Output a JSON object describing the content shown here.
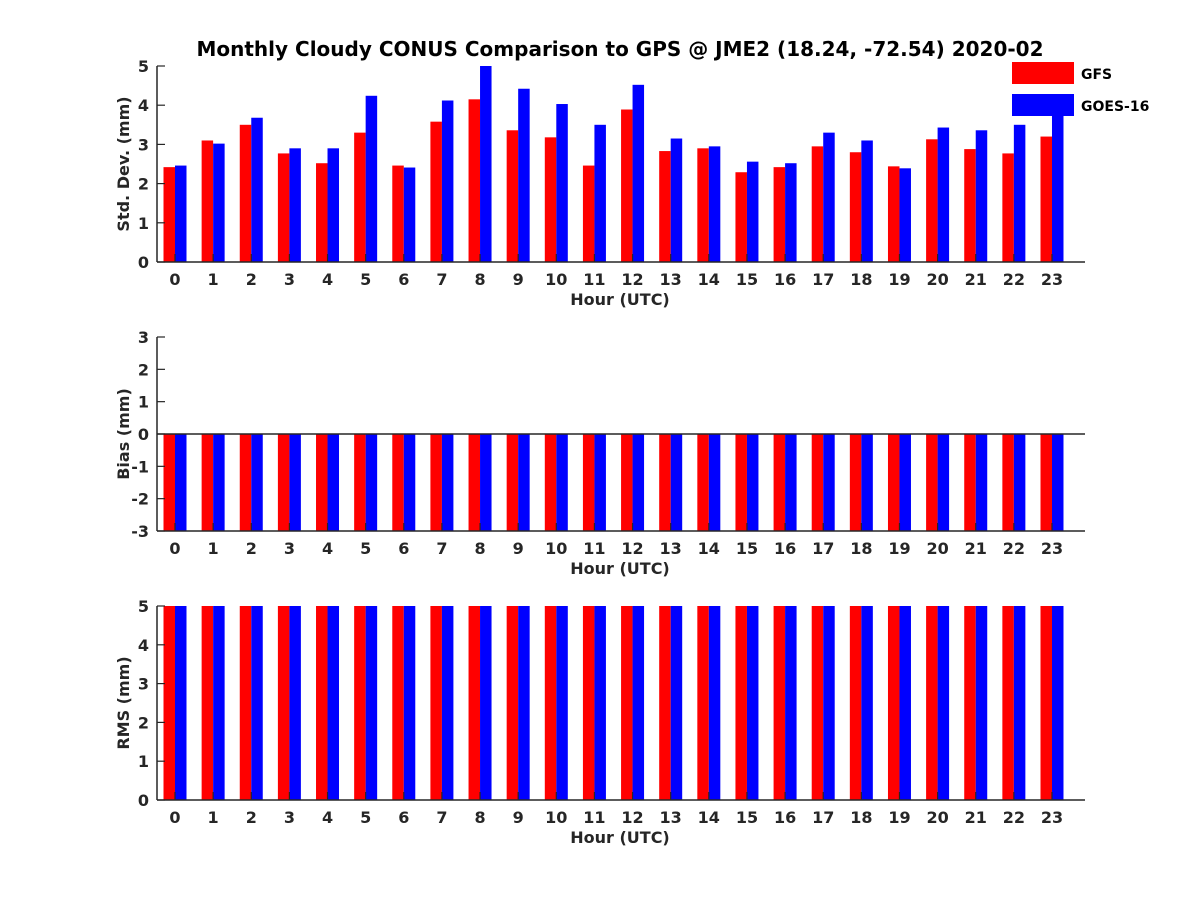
{
  "figure_title": "Monthly Cloudy CONUS Comparison to GPS @ JME2 (18.24, -72.54) 2020-02",
  "legend": {
    "location": "top-right",
    "items": [
      {
        "name": "GFS",
        "color": "#ff0000"
      },
      {
        "name": "GOES-16",
        "color": "#0000ff"
      }
    ]
  },
  "chart_data": [
    {
      "type": "bar",
      "xlabel": "Hour (UTC)",
      "ylabel": "Std. Dev. (mm)",
      "ylim": [
        0,
        5
      ],
      "yticks": [
        0,
        1,
        2,
        3,
        4,
        5
      ],
      "categories": [
        "0",
        "1",
        "2",
        "3",
        "4",
        "5",
        "6",
        "7",
        "8",
        "9",
        "10",
        "11",
        "12",
        "13",
        "14",
        "15",
        "16",
        "17",
        "18",
        "19",
        "20",
        "21",
        "22",
        "23"
      ],
      "series": [
        {
          "name": "GFS",
          "color": "#ff0000",
          "values": [
            2.42,
            3.1,
            3.5,
            2.77,
            2.52,
            3.3,
            2.46,
            3.58,
            4.15,
            3.36,
            3.18,
            2.46,
            3.89,
            2.83,
            2.9,
            2.29,
            2.42,
            2.95,
            2.8,
            2.44,
            3.13,
            2.88,
            2.77,
            3.2
          ]
        },
        {
          "name": "GOES-16",
          "color": "#0000ff",
          "values": [
            2.46,
            3.02,
            3.68,
            2.9,
            2.9,
            4.24,
            2.41,
            4.12,
            5.0,
            4.42,
            4.03,
            3.5,
            4.52,
            3.15,
            2.95,
            2.56,
            2.52,
            3.3,
            3.1,
            2.39,
            3.43,
            3.36,
            3.5,
            3.8
          ]
        }
      ]
    },
    {
      "type": "bar",
      "xlabel": "Hour (UTC)",
      "ylabel": "Bias (mm)",
      "ylim": [
        -3,
        3
      ],
      "yticks": [
        -3,
        -2,
        -1,
        0,
        1,
        2,
        3
      ],
      "categories": [
        "0",
        "1",
        "2",
        "3",
        "4",
        "5",
        "6",
        "7",
        "8",
        "9",
        "10",
        "11",
        "12",
        "13",
        "14",
        "15",
        "16",
        "17",
        "18",
        "19",
        "20",
        "21",
        "22",
        "23"
      ],
      "series": [
        {
          "name": "GFS",
          "color": "#ff0000",
          "values": [
            -3,
            -3,
            -3,
            -3,
            -3,
            -3,
            -3,
            -3,
            -3,
            -3,
            -3,
            -3,
            -3,
            -3,
            -3,
            -3,
            -3,
            -3,
            -3,
            -3,
            -3,
            -3,
            -3,
            -3
          ]
        },
        {
          "name": "GOES-16",
          "color": "#0000ff",
          "values": [
            -3,
            -3,
            -3,
            -3,
            -3,
            -3,
            -3,
            -3,
            -3,
            -3,
            -3,
            -3,
            -3,
            -3,
            -3,
            -3,
            -3,
            -3,
            -3,
            -3,
            -3,
            -3,
            -3,
            -3
          ]
        }
      ]
    },
    {
      "type": "bar",
      "xlabel": "Hour (UTC)",
      "ylabel": "RMS (mm)",
      "ylim": [
        0,
        5
      ],
      "yticks": [
        0,
        1,
        2,
        3,
        4,
        5
      ],
      "categories": [
        "0",
        "1",
        "2",
        "3",
        "4",
        "5",
        "6",
        "7",
        "8",
        "9",
        "10",
        "11",
        "12",
        "13",
        "14",
        "15",
        "16",
        "17",
        "18",
        "19",
        "20",
        "21",
        "22",
        "23"
      ],
      "series": [
        {
          "name": "GFS",
          "color": "#ff0000",
          "values": [
            5,
            5,
            5,
            5,
            5,
            5,
            5,
            5,
            5,
            5,
            5,
            5,
            5,
            5,
            5,
            5,
            5,
            5,
            5,
            5,
            5,
            5,
            5,
            5
          ]
        },
        {
          "name": "GOES-16",
          "color": "#0000ff",
          "values": [
            5,
            5,
            5,
            5,
            5,
            5,
            5,
            5,
            5,
            5,
            5,
            5,
            5,
            5,
            5,
            5,
            5,
            5,
            5,
            5,
            5,
            5,
            5,
            5
          ]
        }
      ]
    }
  ]
}
